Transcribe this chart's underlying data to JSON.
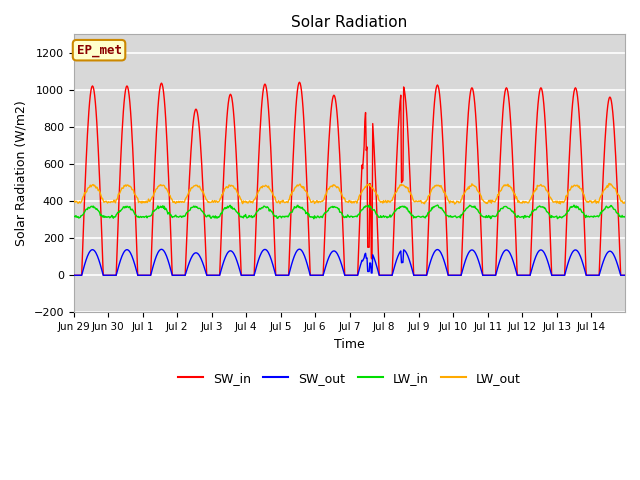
{
  "title": "Solar Radiation",
  "ylabel": "Solar Radiation (W/m2)",
  "xlabel": "Time",
  "ylim": [
    -200,
    1300
  ],
  "yticks": [
    -200,
    0,
    200,
    400,
    600,
    800,
    1000,
    1200
  ],
  "colors": {
    "SW_in": "#ff0000",
    "SW_out": "#0000ff",
    "LW_in": "#00dd00",
    "LW_out": "#ffaa00"
  },
  "annotation_text": "EP_met",
  "annotation_bg": "#ffffcc",
  "annotation_border": "#cc8800",
  "fig_bg": "#ffffff",
  "plot_bg": "#d8d8d8",
  "grid_color": "#ffffff",
  "legend_labels": [
    "SW_in",
    "SW_out",
    "LW_in",
    "LW_out"
  ],
  "day_peaks_SW": [
    1020,
    1020,
    1035,
    895,
    975,
    1030,
    1040,
    970,
    1010,
    1020,
    1025,
    1010,
    1010,
    1010,
    1010,
    960
  ],
  "figsize": [
    6.4,
    4.8
  ],
  "dpi": 100
}
